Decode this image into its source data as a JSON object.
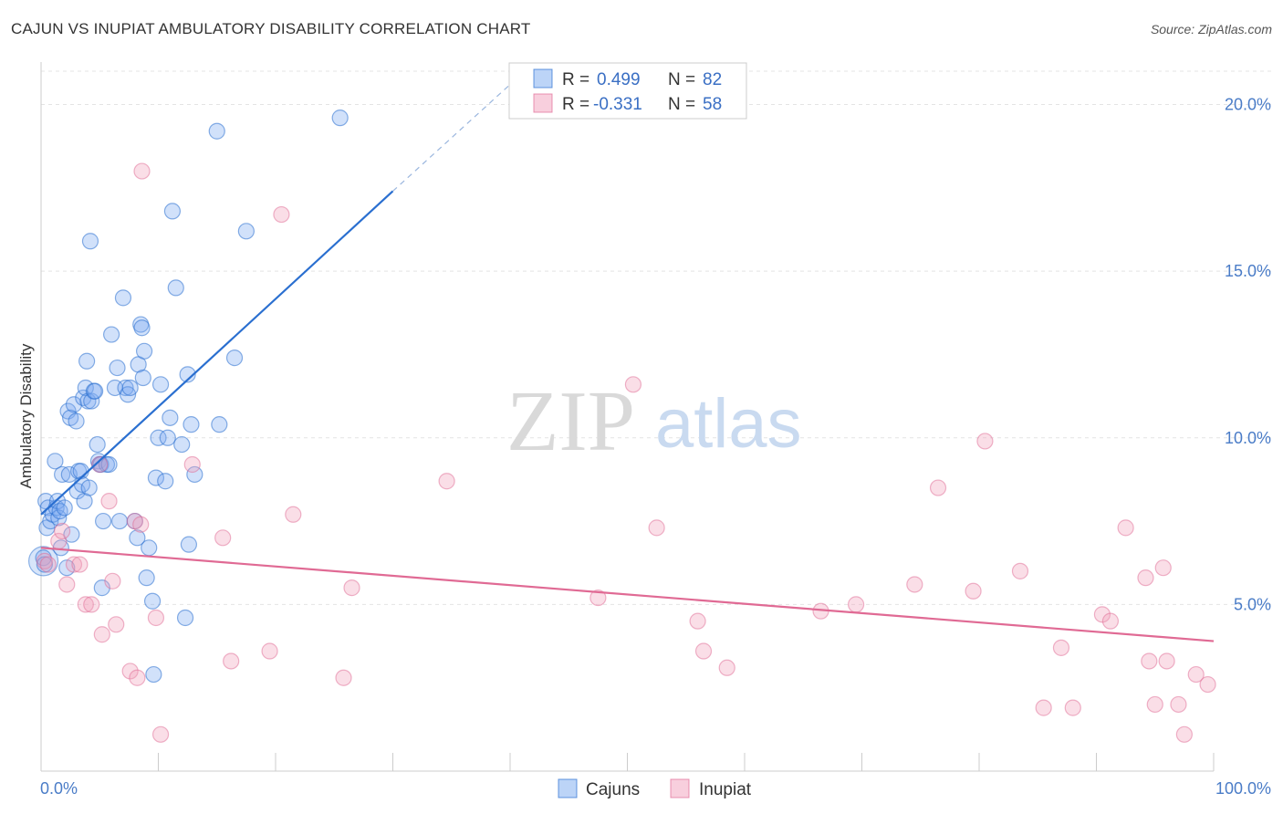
{
  "title": "CAJUN VS INUPIAT AMBULATORY DISABILITY CORRELATION CHART",
  "source": "Source: ZipAtlas.com",
  "chart_data": {
    "type": "scatter",
    "ylabel": "Ambulatory Disability",
    "xlabel": "",
    "xlim": [
      0,
      100
    ],
    "ylim": [
      0,
      21
    ],
    "x_tick_labels": [
      "0.0%",
      "100.0%"
    ],
    "y_ticks": [
      5,
      10,
      15,
      20
    ],
    "y_tick_labels": [
      "5.0%",
      "10.0%",
      "15.0%",
      "20.0%"
    ],
    "watermark": {
      "zip": "ZIP",
      "atlas": "atlas"
    },
    "colors": {
      "cajuns": "#7aaaf0",
      "cajuns_line": "#2a6fd0",
      "inupiat": "#f2a0bb",
      "inupiat_line": "#e06a94",
      "tick": "#4a7cc7"
    },
    "legend": {
      "r_label": "R =",
      "n_label": "N =",
      "entries": [
        {
          "name": "Cajuns",
          "r": "0.499",
          "n": "82"
        },
        {
          "name": "Inupiat",
          "r": "-0.331",
          "n": "58"
        }
      ]
    },
    "series": [
      {
        "name": "Cajuns",
        "trend": {
          "x0": 0,
          "y0": 7.7,
          "x1": 30,
          "y1": 17.4,
          "dash_to_x": 40,
          "dash_to_y": 20.6
        },
        "points": [
          [
            0.2,
            6.4
          ],
          [
            0.3,
            6.2
          ],
          [
            0.4,
            8.1
          ],
          [
            0.5,
            7.3
          ],
          [
            0.6,
            7.9
          ],
          [
            0.8,
            7.5
          ],
          [
            1.0,
            7.7
          ],
          [
            1.2,
            9.3
          ],
          [
            1.3,
            7.9
          ],
          [
            1.4,
            8.1
          ],
          [
            1.5,
            7.6
          ],
          [
            1.6,
            7.8
          ],
          [
            1.7,
            6.7
          ],
          [
            1.8,
            8.9
          ],
          [
            2.0,
            7.9
          ],
          [
            2.2,
            6.1
          ],
          [
            2.3,
            10.8
          ],
          [
            2.4,
            8.9
          ],
          [
            2.5,
            10.6
          ],
          [
            2.6,
            7.1
          ],
          [
            2.8,
            11.0
          ],
          [
            3.0,
            10.5
          ],
          [
            3.1,
            8.4
          ],
          [
            3.2,
            9.0
          ],
          [
            3.4,
            9.0
          ],
          [
            3.5,
            8.6
          ],
          [
            3.6,
            11.2
          ],
          [
            3.7,
            8.1
          ],
          [
            3.8,
            11.5
          ],
          [
            3.9,
            12.3
          ],
          [
            4.0,
            11.1
          ],
          [
            4.1,
            8.5
          ],
          [
            4.2,
            15.9
          ],
          [
            4.3,
            11.1
          ],
          [
            4.5,
            11.4
          ],
          [
            4.6,
            11.4
          ],
          [
            4.8,
            9.8
          ],
          [
            4.9,
            9.3
          ],
          [
            5.0,
            9.2
          ],
          [
            5.1,
            9.2
          ],
          [
            5.2,
            5.5
          ],
          [
            5.3,
            7.5
          ],
          [
            5.6,
            9.2
          ],
          [
            5.8,
            9.2
          ],
          [
            6.0,
            13.1
          ],
          [
            6.3,
            11.5
          ],
          [
            6.5,
            12.1
          ],
          [
            6.7,
            7.5
          ],
          [
            7.0,
            14.2
          ],
          [
            7.2,
            11.5
          ],
          [
            7.4,
            11.3
          ],
          [
            7.6,
            11.5
          ],
          [
            8.0,
            7.5
          ],
          [
            8.2,
            7.0
          ],
          [
            8.3,
            12.2
          ],
          [
            8.5,
            13.4
          ],
          [
            8.6,
            13.3
          ],
          [
            8.7,
            11.8
          ],
          [
            8.8,
            12.6
          ],
          [
            9.0,
            5.8
          ],
          [
            9.2,
            6.7
          ],
          [
            9.5,
            5.1
          ],
          [
            9.6,
            2.9
          ],
          [
            9.8,
            8.8
          ],
          [
            10.0,
            10.0
          ],
          [
            10.2,
            11.6
          ],
          [
            10.6,
            8.7
          ],
          [
            10.8,
            10.0
          ],
          [
            11.0,
            10.6
          ],
          [
            11.2,
            16.8
          ],
          [
            11.5,
            14.5
          ],
          [
            12.0,
            9.8
          ],
          [
            12.3,
            4.6
          ],
          [
            12.5,
            11.9
          ],
          [
            12.8,
            10.4
          ],
          [
            13.1,
            8.9
          ],
          [
            15.0,
            19.2
          ],
          [
            15.2,
            10.4
          ],
          [
            16.5,
            12.4
          ],
          [
            17.5,
            16.2
          ],
          [
            25.5,
            19.6
          ],
          [
            12.6,
            6.8
          ]
        ]
      },
      {
        "name": "Inupiat",
        "trend": {
          "x0": 0,
          "y0": 6.7,
          "x1": 100,
          "y1": 3.9
        },
        "points": [
          [
            0.3,
            6.3
          ],
          [
            0.6,
            6.2
          ],
          [
            1.5,
            6.9
          ],
          [
            1.8,
            7.2
          ],
          [
            2.2,
            5.6
          ],
          [
            2.8,
            6.2
          ],
          [
            3.3,
            6.2
          ],
          [
            3.8,
            5.0
          ],
          [
            4.3,
            5.0
          ],
          [
            5.0,
            9.2
          ],
          [
            5.2,
            4.1
          ],
          [
            5.8,
            8.1
          ],
          [
            6.1,
            5.7
          ],
          [
            6.4,
            4.4
          ],
          [
            7.6,
            3.0
          ],
          [
            8.0,
            7.5
          ],
          [
            8.2,
            2.8
          ],
          [
            8.5,
            7.4
          ],
          [
            8.6,
            18.0
          ],
          [
            9.8,
            4.6
          ],
          [
            10.2,
            1.1
          ],
          [
            12.9,
            9.2
          ],
          [
            15.5,
            7.0
          ],
          [
            16.2,
            3.3
          ],
          [
            19.5,
            3.6
          ],
          [
            20.5,
            16.7
          ],
          [
            21.5,
            7.7
          ],
          [
            25.8,
            2.8
          ],
          [
            26.5,
            5.5
          ],
          [
            34.6,
            8.7
          ],
          [
            47.5,
            5.2
          ],
          [
            50.5,
            11.6
          ],
          [
            52.5,
            7.3
          ],
          [
            56.0,
            4.5
          ],
          [
            56.5,
            3.6
          ],
          [
            58.5,
            3.1
          ],
          [
            66.5,
            4.8
          ],
          [
            69.5,
            5.0
          ],
          [
            74.5,
            5.6
          ],
          [
            76.5,
            8.5
          ],
          [
            79.5,
            5.4
          ],
          [
            80.5,
            9.9
          ],
          [
            83.5,
            6.0
          ],
          [
            85.5,
            1.9
          ],
          [
            87.0,
            3.7
          ],
          [
            88.0,
            1.9
          ],
          [
            90.5,
            4.7
          ],
          [
            91.2,
            4.5
          ],
          [
            92.5,
            7.3
          ],
          [
            94.2,
            5.8
          ],
          [
            94.5,
            3.3
          ],
          [
            95.0,
            2.0
          ],
          [
            95.7,
            6.1
          ],
          [
            96.0,
            3.3
          ],
          [
            97.0,
            2.0
          ],
          [
            97.5,
            1.1
          ],
          [
            98.5,
            2.9
          ],
          [
            99.5,
            2.6
          ]
        ]
      }
    ]
  }
}
